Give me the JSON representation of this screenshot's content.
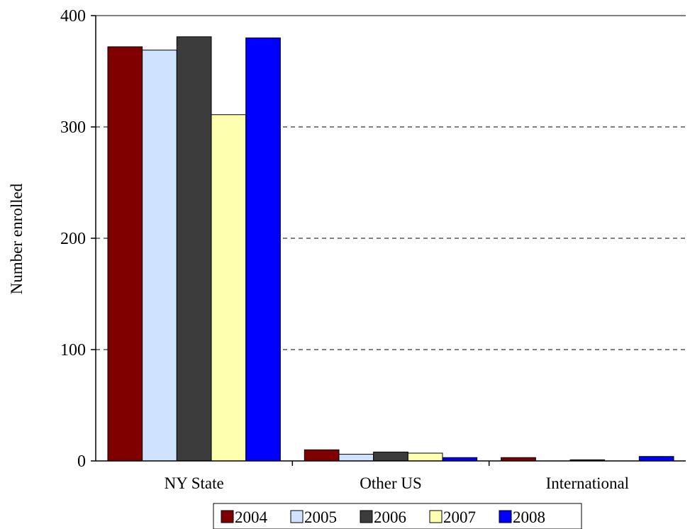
{
  "chart_data": {
    "type": "bar",
    "ylabel": "Number enrolled",
    "categories": [
      "NY State",
      "Other US",
      "International"
    ],
    "series": [
      {
        "name": "2004",
        "color": "#800000",
        "values": [
          372,
          10,
          3
        ]
      },
      {
        "name": "2005",
        "color": "#cfe2ff",
        "values": [
          369,
          6,
          0
        ]
      },
      {
        "name": "2006",
        "color": "#3c3c3c",
        "values": [
          381,
          8,
          1
        ]
      },
      {
        "name": "2007",
        "color": "#ffffb0",
        "values": [
          311,
          7,
          0
        ]
      },
      {
        "name": "2008",
        "color": "#0000ff",
        "values": [
          380,
          3,
          4
        ]
      }
    ],
    "ylim": [
      0,
      400
    ],
    "yticks": [
      0,
      100,
      200,
      300,
      400
    ],
    "grid": "horizontal dashed",
    "legend_position": "bottom"
  }
}
